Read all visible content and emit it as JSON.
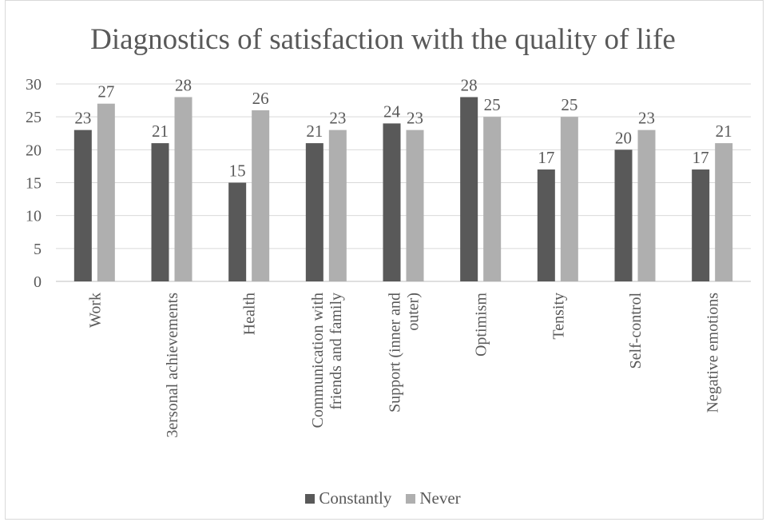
{
  "chart_data": {
    "type": "bar",
    "title": "Diagnostics of satisfaction with the quality of life",
    "categories": [
      [
        "Work"
      ],
      [
        "3ersonal achievements"
      ],
      [
        "Health"
      ],
      [
        "Communication with",
        "friends and family"
      ],
      [
        "Support (inner and",
        "outer)"
      ],
      [
        "Optimism"
      ],
      [
        "Tensity"
      ],
      [
        "Self-control"
      ],
      [
        "Negative emotions"
      ]
    ],
    "series": [
      {
        "name": "Constantly",
        "color": "#595959",
        "values": [
          23,
          21,
          15,
          21,
          24,
          28,
          17,
          20,
          17
        ]
      },
      {
        "name": "Never",
        "color": "#afafaf",
        "values": [
          27,
          28,
          26,
          23,
          23,
          25,
          25,
          23,
          21
        ]
      }
    ],
    "ylim": [
      0,
      30
    ],
    "yticks": [
      0,
      5,
      10,
      15,
      20,
      25,
      30
    ],
    "grid": true,
    "legend_position": "bottom"
  }
}
